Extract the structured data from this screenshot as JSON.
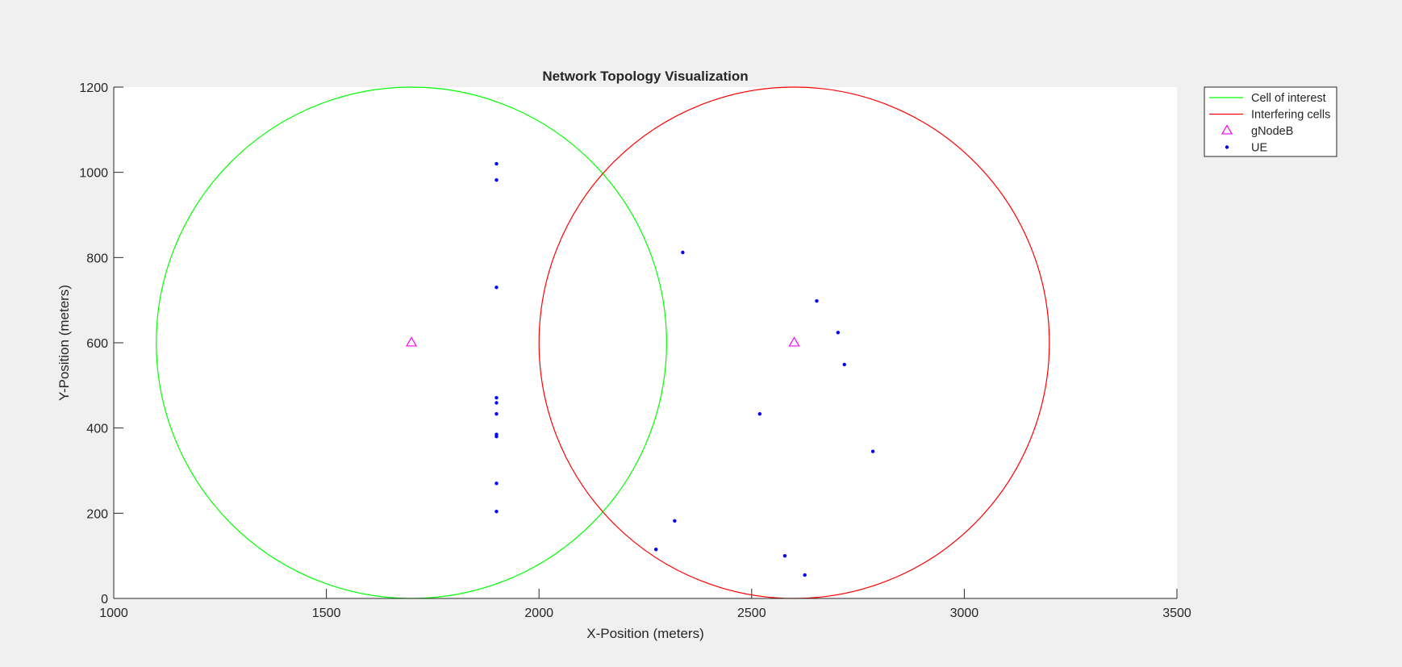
{
  "chart_data": {
    "type": "scatter",
    "title": "Network Topology Visualization",
    "xlabel": "X-Position (meters)",
    "ylabel": "Y-Position (meters)",
    "xlim": [
      1000,
      3500
    ],
    "ylim": [
      0,
      1200
    ],
    "xticks": [
      1000,
      1500,
      2000,
      2500,
      3000,
      3500
    ],
    "yticks": [
      0,
      200,
      400,
      600,
      800,
      1000,
      1200
    ],
    "grid": false,
    "legend_position": "outside-top-right",
    "legend": [
      {
        "label": "Cell of interest",
        "marker": "line",
        "color": "#00ff00"
      },
      {
        "label": "Interfering cells",
        "marker": "line",
        "color": "#ff0000"
      },
      {
        "label": "gNodeB",
        "marker": "triangle",
        "color": "#ff00ff"
      },
      {
        "label": "UE",
        "marker": "dot",
        "color": "#0000ff"
      }
    ],
    "series": [
      {
        "name": "Cell of interest",
        "kind": "circle",
        "color": "#00ff00",
        "circles": [
          {
            "cx": 1700,
            "cy": 600,
            "r": 600
          }
        ]
      },
      {
        "name": "Interfering cells",
        "kind": "circle",
        "color": "#ff0000",
        "circles": [
          {
            "cx": 2600,
            "cy": 600,
            "r": 600
          }
        ]
      },
      {
        "name": "gNodeB",
        "kind": "triangle",
        "color": "#ff00ff",
        "x": [
          1700,
          2600
        ],
        "y": [
          600,
          600
        ]
      },
      {
        "name": "UE",
        "kind": "dot",
        "color": "#0000ff",
        "x": [
          1900,
          1900,
          1900,
          1900,
          1900,
          1900,
          1900,
          1900,
          1900,
          1900,
          2338,
          2653,
          2703,
          2718,
          2519,
          2785,
          2319,
          2275,
          2578,
          2625
        ],
        "y": [
          1020,
          982,
          730,
          471,
          459,
          433,
          385,
          380,
          270,
          204,
          812,
          698,
          624,
          549,
          433,
          345,
          182,
          115,
          100,
          55
        ]
      }
    ]
  }
}
